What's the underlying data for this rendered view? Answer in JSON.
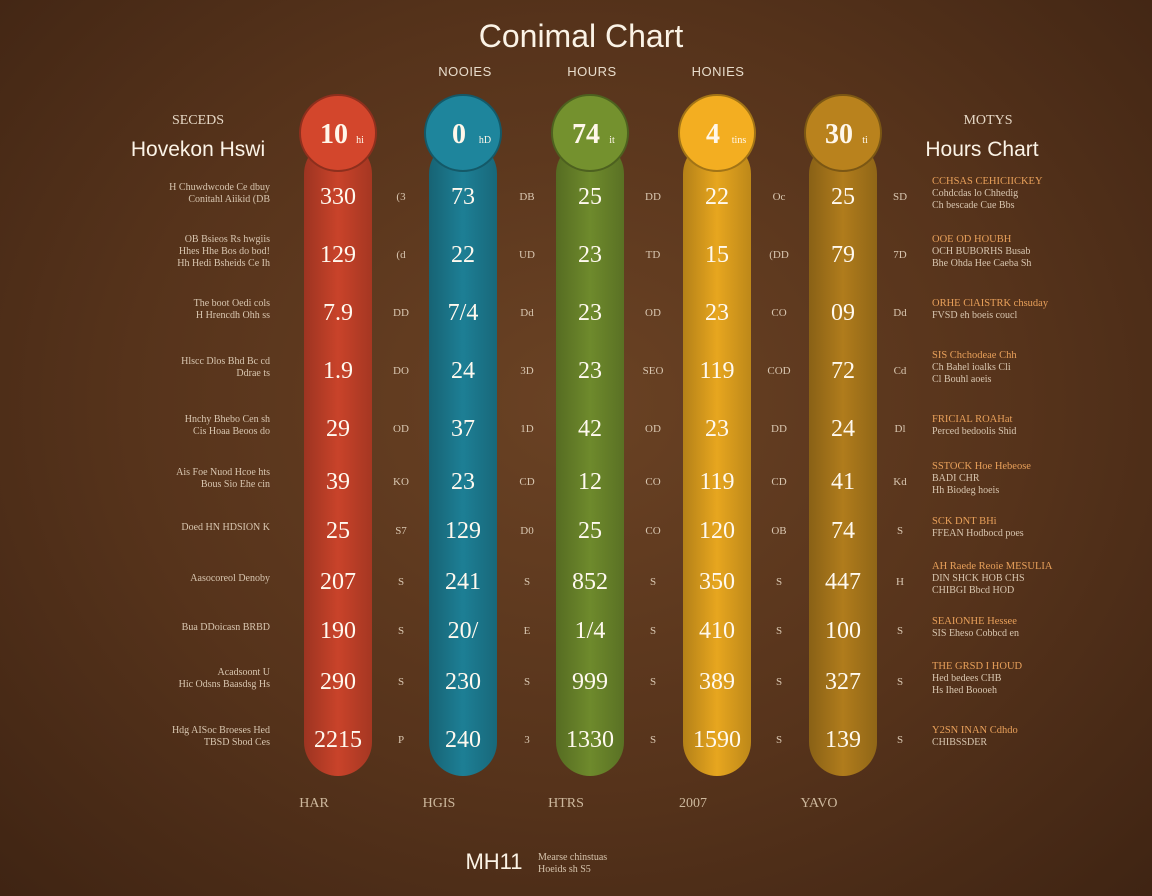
{
  "chart_data": {
    "type": "table",
    "title": "Conimal Chart",
    "column_headers": [
      "NOOIES",
      "HOURS",
      "HONIES"
    ],
    "left_header": {
      "small": "SECEDS",
      "big": "Hovekon Hswi"
    },
    "right_header": {
      "small": "MOTYS",
      "big": "Hours Chart"
    },
    "series": [
      {
        "bubble": "10",
        "bubble_sub": "hi",
        "color": "#c9432a",
        "values": [
          "330",
          "129",
          "7.9",
          "1.9",
          "29",
          "39",
          "25",
          "207",
          "190",
          "290",
          "2215"
        ],
        "footer": "HAR"
      },
      {
        "bubble": "0",
        "bubble_sub": "hD",
        "color": "#1d7f95",
        "values": [
          "73",
          "22",
          "7/4",
          "24",
          "37",
          "23",
          "129",
          "241",
          "20/",
          "230",
          "240"
        ],
        "footer": "HGIS"
      },
      {
        "bubble": "74",
        "bubble_sub": "it",
        "color": "#6e8a2c",
        "values": [
          "25",
          "23",
          "23",
          "23",
          "42",
          "12",
          "25",
          "852",
          "1/4",
          "999",
          "1330"
        ],
        "footer": "HTRS"
      },
      {
        "bubble": "4",
        "bubble_sub": "tins",
        "color": "#e7a61f",
        "values": [
          "22",
          "15",
          "23",
          "119",
          "23",
          "119",
          "120",
          "350",
          "410",
          "389",
          "1590"
        ],
        "footer": "2007"
      },
      {
        "bubble": "30",
        "bubble_sub": "ti",
        "color": "#b07c1c",
        "values": [
          "25",
          "79",
          "09",
          "72",
          "24",
          "41",
          "74",
          "447",
          "100",
          "327",
          "139"
        ],
        "footer": "YAVO"
      }
    ],
    "gap_labels": [
      [
        "(3",
        "DB",
        "DD",
        "Oc",
        "SD"
      ],
      [
        "(d",
        "UD",
        "TD",
        "(DD",
        "7D"
      ],
      [
        "DD",
        "Dd",
        "OD",
        "CO",
        "Dd"
      ],
      [
        "DO",
        "3D",
        "SEO",
        "COD",
        "Cd"
      ],
      [
        "OD",
        "1D",
        "OD",
        "DD",
        "Dl"
      ],
      [
        "KO",
        "CD",
        "CO",
        "CD",
        "Kd"
      ],
      [
        "S7",
        "D0",
        "CO",
        "OB",
        "S"
      ],
      [
        "S",
        "S",
        "S",
        "S",
        "H"
      ],
      [
        "S",
        "E",
        "S",
        "S",
        "S"
      ],
      [
        "S",
        "S",
        "S",
        "S",
        "S"
      ],
      [
        "P",
        "3",
        "S",
        "S",
        "S"
      ]
    ],
    "left_notes": [
      [
        "H Chuwdwcode Ce dbuy",
        "Conitahl Aiikid (DB"
      ],
      [
        "OB Bsieos Rs hwgiis",
        "Hhes Hhe Bos do bod!",
        "Hh Hedi Bsheids Ce Ih"
      ],
      [
        "The boot Oedi cols",
        "H Hrencdh Ohh ss"
      ],
      [
        "Hlscc Dlos Bhd Bc cd",
        "Ddrae ts"
      ],
      [
        "Hnchy Bhebo Cen sh",
        "Cis Hoaa Beoos do"
      ],
      [
        "Ais Foe Nuod Hcoe hts",
        "Bous Sio Ehe cin"
      ],
      [
        "Doed HN HDSION K"
      ],
      [
        "Aasocoreol Denoby"
      ],
      [
        "Bua DDoicasn BRBD"
      ],
      [
        "Acadsoont U",
        "Hic Odsns Baasdsg Hs"
      ],
      [
        "Hdg AISoc Broeses Hed",
        "TBSD Sbod Ces"
      ]
    ],
    "right_notes": [
      [
        "CCHSAS CEHICIICKEY",
        "Cohdcdas lo Chhedig",
        "Ch bescade Cue Bbs"
      ],
      [
        "OOE OD HOUBH",
        "OCH BUBORHS Busab",
        "Bhe Ohda Hee Caeba Sh"
      ],
      [
        "ORHE ClAISTRK chsuday",
        "FVSD eh boeis coucl"
      ],
      [
        "SIS Chchodeae Chh",
        "Ch Bahel ioalks Cli",
        "Cl Bouhl aoeis"
      ],
      [
        "FRICIAL ROAHat",
        "Perced bedoolis Shid"
      ],
      [
        "SSTOCK Hoe Hebeose",
        "BADI CHR",
        "Hh Biodeg hoeis"
      ],
      [
        "SCK DNT BHi",
        "FFEAN Hodbocd poes"
      ],
      [
        "AH Raede Reoie MESULIA",
        "DIN SHCK HOB CHS",
        "CHIBGI Bbcd HOD"
      ],
      [
        "SEAIONHE Hessee",
        "SIS Eheso Cobbcd en"
      ],
      [
        "THE GRSD I HOUD",
        "Hed bedees CHB",
        "Hs Ihed Boooeh"
      ],
      [
        "Y2SN INAN Cdhdo",
        "CHIBSSDER"
      ]
    ],
    "footer_brand": "MH11",
    "footer_brand_sub": [
      "Mearse chinstuas",
      "Hoeids sh S5"
    ]
  }
}
